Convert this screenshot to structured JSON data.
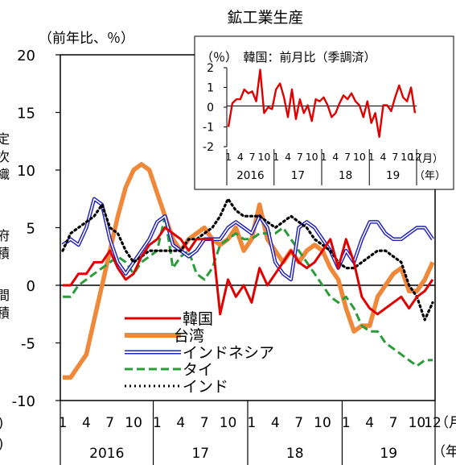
{
  "chart_data": [
    {
      "type": "line",
      "title": "鉱工業生産",
      "ylabel": "（前年比、％）",
      "ylim": [
        -10,
        20
      ],
      "yticks": [
        20,
        15,
        10,
        5,
        0,
        -5,
        -10
      ],
      "month_ticks": [
        "1",
        "4",
        "7",
        "10",
        "1",
        "4",
        "7",
        "10",
        "1",
        "4",
        "7",
        "10",
        "1",
        "4",
        "7",
        "10",
        "12"
      ],
      "year_labels": [
        "2016",
        "17",
        "18",
        "19"
      ],
      "x_unit_month": "（月）",
      "x_unit_year": "（年）",
      "x_start": "2016-01",
      "x_end": "2019-12",
      "left_cut_labels": [
        "定",
        "次",
        "織",
        "府",
        "積",
        "間",
        "積",
        ")",
        ")"
      ],
      "legend_position": "bottom-left",
      "series": [
        {
          "name": "韓国",
          "color": "#e00000",
          "style": "solid",
          "values": [
            0,
            0,
            1,
            1,
            2,
            2,
            3,
            1.5,
            0.5,
            1,
            2.5,
            3.5,
            4,
            5,
            4.5,
            4,
            3,
            4,
            4,
            4,
            -2.5,
            0.5,
            -1,
            0,
            -1.5,
            1.5,
            0,
            1,
            2,
            3,
            2,
            1.5,
            2,
            3,
            4,
            1.5,
            4,
            2,
            -1,
            -2,
            -2.5,
            -2,
            -1.5,
            -1,
            -2,
            -1,
            -0.5,
            0.5
          ]
        },
        {
          "name": "台湾",
          "color": "#f0883a",
          "style": "thick",
          "values": [
            -8,
            -8,
            -7,
            -6,
            -3,
            0,
            3,
            6,
            8.5,
            10,
            10.5,
            10,
            8,
            6,
            4,
            3,
            4,
            4.5,
            5,
            4,
            3.5,
            4,
            5,
            3,
            4,
            7,
            4,
            3,
            2,
            3,
            2,
            3,
            3.5,
            3,
            1.5,
            0.5,
            -2,
            -4,
            -3.5,
            -3.5,
            -1,
            0,
            1,
            1.5,
            -0.5,
            -0.5,
            0.5,
            2
          ]
        },
        {
          "name": "インドネシア",
          "color": "#2020c0",
          "style": "double",
          "values": [
            3.5,
            4,
            3.5,
            5,
            7.5,
            7,
            4,
            2,
            1,
            2,
            3,
            4,
            5.5,
            6,
            3.5,
            3,
            2.5,
            3,
            4,
            4,
            4,
            5,
            5.5,
            5,
            4.5,
            6,
            5,
            2,
            1,
            0.5,
            5,
            5.5,
            5,
            4,
            3,
            1.5,
            3,
            2,
            4,
            5.5,
            5.5,
            4.5,
            4,
            4,
            4.5,
            5,
            5,
            4
          ]
        },
        {
          "name": "タイ",
          "color": "#2a9d3a",
          "style": "dashed",
          "values": [
            -1,
            -1,
            0,
            0.5,
            1,
            1.5,
            2,
            2.5,
            2,
            1,
            2,
            2.5,
            3,
            6,
            1.5,
            2.5,
            3,
            1,
            0.5,
            1.5,
            3.5,
            4,
            4.5,
            4,
            4,
            4.5,
            4.5,
            4.5,
            5,
            4,
            3,
            2,
            1,
            0,
            -1,
            -1.5,
            -1,
            -2,
            -3.5,
            -4,
            -4,
            -5,
            -5.5,
            -6,
            -6.5,
            -7,
            -6.5,
            -6.5
          ]
        },
        {
          "name": "インド",
          "color": "#000000",
          "style": "dotted",
          "values": [
            3,
            4.5,
            5,
            5.5,
            6,
            7,
            5,
            4.5,
            3,
            2,
            2.5,
            3,
            3,
            3,
            3,
            3,
            4,
            4,
            4.5,
            5,
            6,
            7.5,
            6.5,
            6,
            6,
            6,
            5.5,
            5,
            5.5,
            6,
            5.5,
            5,
            4,
            3.5,
            3,
            2,
            1.5,
            1.5,
            2,
            2.5,
            3,
            3,
            2.5,
            2,
            0,
            -1,
            -3,
            -1.5
          ]
        }
      ]
    },
    {
      "type": "line",
      "title": "（％）　韓国：前月比（季調済）",
      "ylim": [
        -2,
        2
      ],
      "yticks": [
        2,
        1,
        0,
        -1,
        -2
      ],
      "month_ticks": [
        "1",
        "4",
        "7",
        "10",
        "1",
        "4",
        "7",
        "10",
        "1",
        "4",
        "7",
        "10",
        "1",
        "4",
        "7",
        "10",
        "12"
      ],
      "year_labels": [
        "2016",
        "17",
        "18",
        "19"
      ],
      "x_unit_month": "（月）",
      "x_unit_year": "（年）",
      "series": [
        {
          "name": "韓国",
          "color": "#e00000",
          "values": [
            -1,
            0.2,
            0.4,
            0.4,
            0.9,
            0.7,
            0.8,
            0.3,
            1.9,
            -0.3,
            0,
            -0.1,
            0.9,
            1.2,
            0.5,
            -0.5,
            0.9,
            -0.6,
            0.4,
            -0.3,
            0.1,
            -0.7,
            0.4,
            0.3,
            0.5,
            0.1,
            -0.5,
            -0.3,
            0.2,
            0.6,
            0.4,
            0.7,
            0.3,
            0.1,
            -0.5,
            0.3,
            -0.8,
            -0.3,
            -1.5,
            0.1,
            0.1,
            -0.2,
            0.5,
            1.1,
            0.5,
            0.3,
            1.0,
            -0.3
          ]
        }
      ]
    }
  ]
}
